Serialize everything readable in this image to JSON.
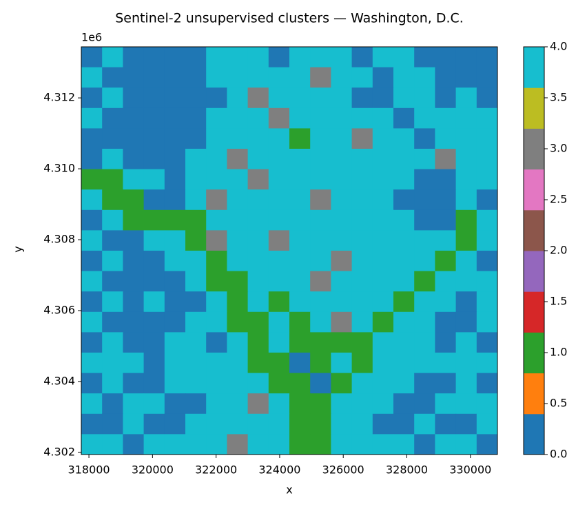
{
  "chart_data": {
    "type": "raster",
    "title": "Sentinel-2 unsupervised clusters — Washington, D.C.",
    "x_label": "x",
    "y_label": "y",
    "y_offset_label": "1e6",
    "xlim": [
      317760,
      330850
    ],
    "ylim": [
      4301940,
      4313440
    ],
    "xticks": [
      318000,
      320000,
      322000,
      324000,
      326000,
      328000,
      330000
    ],
    "yticks": [
      {
        "value": 4302000,
        "label": "4.302"
      },
      {
        "value": 4304000,
        "label": "4.304"
      },
      {
        "value": 4306000,
        "label": "4.306"
      },
      {
        "value": 4308000,
        "label": "4.308"
      },
      {
        "value": 4310000,
        "label": "4.310"
      },
      {
        "value": 4312000,
        "label": "4.312"
      }
    ],
    "clim": [
      0,
      4
    ],
    "cticks": [
      {
        "value": 0,
        "label": "0.0"
      },
      {
        "value": 0.5,
        "label": "0.5"
      },
      {
        "value": 1,
        "label": "1.0"
      },
      {
        "value": 1.5,
        "label": "1.5"
      },
      {
        "value": 2,
        "label": "2.0"
      },
      {
        "value": 2.5,
        "label": "2.5"
      },
      {
        "value": 3,
        "label": "3.0"
      },
      {
        "value": 3.5,
        "label": "3.5"
      },
      {
        "value": 4,
        "label": "4.0"
      }
    ],
    "colors": [
      "#1f77b4",
      "#ff7f0e",
      "#2ca02c",
      "#d62728",
      "#9467bd",
      "#8c564b",
      "#e377c2",
      "#7f7f7f",
      "#bcbd22",
      "#17becf"
    ],
    "z": [
      [
        0,
        4,
        0,
        0,
        0,
        0,
        4,
        4,
        4,
        0,
        4,
        4,
        4,
        0,
        4,
        4,
        0,
        0,
        0,
        0
      ],
      [
        4,
        0,
        0,
        0,
        0,
        0,
        4,
        4,
        4,
        4,
        4,
        3,
        4,
        4,
        0,
        4,
        4,
        0,
        0,
        0
      ],
      [
        0,
        4,
        0,
        0,
        0,
        0,
        0,
        4,
        3,
        4,
        4,
        4,
        4,
        0,
        0,
        4,
        4,
        0,
        4,
        0
      ],
      [
        4,
        0,
        0,
        0,
        0,
        0,
        4,
        4,
        4,
        3,
        4,
        4,
        4,
        4,
        4,
        0,
        4,
        4,
        4,
        4
      ],
      [
        0,
        0,
        0,
        0,
        0,
        0,
        4,
        4,
        4,
        4,
        1,
        4,
        4,
        3,
        4,
        4,
        0,
        4,
        4,
        4
      ],
      [
        0,
        4,
        0,
        0,
        0,
        4,
        4,
        3,
        4,
        4,
        4,
        4,
        4,
        4,
        4,
        4,
        4,
        3,
        4,
        4
      ],
      [
        1,
        1,
        4,
        4,
        0,
        4,
        4,
        4,
        3,
        4,
        4,
        4,
        4,
        4,
        4,
        4,
        0,
        0,
        4,
        4
      ],
      [
        4,
        1,
        1,
        0,
        0,
        4,
        3,
        4,
        4,
        4,
        4,
        3,
        4,
        4,
        4,
        0,
        0,
        0,
        4,
        0
      ],
      [
        0,
        4,
        1,
        1,
        1,
        1,
        4,
        4,
        4,
        4,
        4,
        4,
        4,
        4,
        4,
        4,
        0,
        0,
        1,
        4
      ],
      [
        4,
        0,
        0,
        4,
        4,
        1,
        3,
        4,
        4,
        3,
        4,
        4,
        4,
        4,
        4,
        4,
        4,
        4,
        1,
        4
      ],
      [
        0,
        4,
        0,
        0,
        4,
        4,
        1,
        4,
        4,
        4,
        4,
        4,
        3,
        4,
        4,
        4,
        4,
        1,
        4,
        0
      ],
      [
        4,
        0,
        0,
        0,
        0,
        4,
        1,
        1,
        4,
        4,
        4,
        3,
        4,
        4,
        4,
        4,
        1,
        4,
        4,
        4
      ],
      [
        0,
        4,
        0,
        4,
        0,
        0,
        4,
        1,
        4,
        1,
        4,
        4,
        4,
        4,
        4,
        1,
        4,
        4,
        0,
        4
      ],
      [
        4,
        0,
        0,
        0,
        0,
        4,
        4,
        1,
        1,
        4,
        1,
        4,
        3,
        4,
        1,
        4,
        4,
        0,
        0,
        4
      ],
      [
        0,
        4,
        0,
        0,
        4,
        4,
        0,
        4,
        1,
        4,
        1,
        1,
        1,
        1,
        4,
        4,
        4,
        0,
        4,
        0
      ],
      [
        4,
        4,
        4,
        0,
        4,
        4,
        4,
        4,
        1,
        1,
        0,
        1,
        4,
        1,
        4,
        4,
        4,
        4,
        4,
        4
      ],
      [
        0,
        4,
        0,
        0,
        4,
        4,
        4,
        4,
        4,
        1,
        1,
        0,
        1,
        4,
        4,
        4,
        0,
        0,
        4,
        0
      ],
      [
        4,
        0,
        4,
        4,
        0,
        0,
        4,
        4,
        3,
        4,
        1,
        1,
        4,
        4,
        4,
        0,
        0,
        4,
        4,
        4
      ],
      [
        0,
        0,
        4,
        0,
        0,
        4,
        4,
        4,
        4,
        4,
        1,
        1,
        4,
        4,
        0,
        0,
        4,
        0,
        0,
        4
      ],
      [
        4,
        4,
        0,
        4,
        4,
        4,
        4,
        3,
        4,
        4,
        1,
        1,
        4,
        4,
        4,
        4,
        0,
        4,
        4,
        0
      ]
    ]
  }
}
